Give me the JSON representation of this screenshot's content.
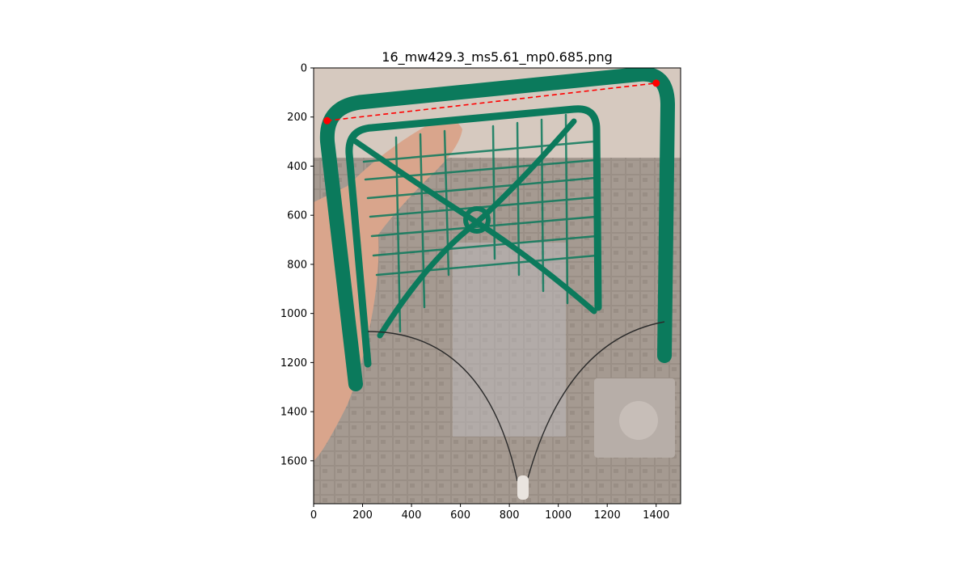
{
  "chart_data": {
    "type": "scatter",
    "title": "16_mw429.3_ms5.61_mp0.685.png",
    "xlabel": "",
    "ylabel": "",
    "xlim": [
      0,
      1500
    ],
    "ylim": [
      1775,
      0
    ],
    "y_axis_inverted": true,
    "grid": false,
    "background": "photograph: green plastic basket held by a hand against a tiled wall, with a thin wire arc hanging below between the basket's bottom corners",
    "xticks": [
      0,
      200,
      400,
      600,
      800,
      1000,
      1200,
      1400
    ],
    "yticks": [
      0,
      200,
      400,
      600,
      800,
      1000,
      1200,
      1400,
      1600
    ],
    "series": [
      {
        "type": "scatter",
        "color": "#ff0000",
        "points": [
          [
            55,
            215
          ],
          [
            1400,
            62
          ]
        ]
      },
      {
        "type": "line",
        "style": "dashed",
        "color": "#ff0000",
        "points": [
          [
            55,
            215
          ],
          [
            1400,
            62
          ]
        ]
      }
    ]
  }
}
